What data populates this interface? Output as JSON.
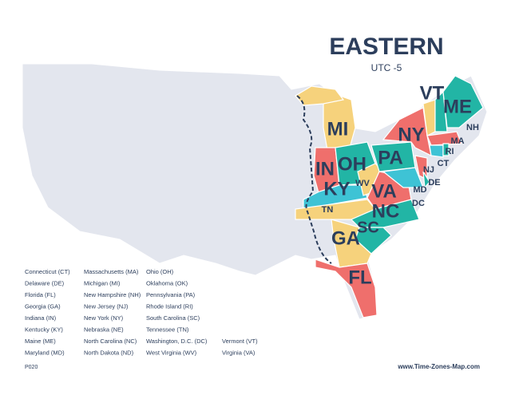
{
  "header": {
    "title": "EASTERN",
    "subtitle": "UTC -5"
  },
  "map_labels": [
    "VT",
    "ME",
    "NH",
    "MA",
    "RI",
    "CT",
    "NY",
    "MI",
    "PA",
    "NJ",
    "OH",
    "IN",
    "MD",
    "DE",
    "KY",
    "WV",
    "VA",
    "DC",
    "TN",
    "NC",
    "SC",
    "GA",
    "FL"
  ],
  "legend": {
    "columns": [
      [
        "Connecticut (CT)",
        "Delaware (DE)",
        "Florida (FL)",
        "Georgia (GA)",
        "Indiana (IN)",
        "Kentucky (KY)",
        "Maine (ME)",
        "Maryland (MD)"
      ],
      [
        "Massachusetts (MA)",
        "Michigan (MI)",
        "New Hampshire (NH)",
        "New Jersey (NJ)",
        "New York (NY)",
        "Nebraska (NE)",
        "North Carolina (NC)",
        "North Dakota (ND)"
      ],
      [
        "Ohio (OH)",
        "Oklahoma (OK)",
        "Pennsylvania (PA)",
        "Rhode Island (RI)",
        "South Carolina (SC)",
        "Tennessee (TN)",
        "Washington, D.C. (DC)",
        "West Virginia (WV)"
      ],
      [
        "Vermont (VT)",
        "Virginia (VA)"
      ]
    ]
  },
  "footer": {
    "code": "P020",
    "website": "www.Time-Zones-Map.com"
  }
}
